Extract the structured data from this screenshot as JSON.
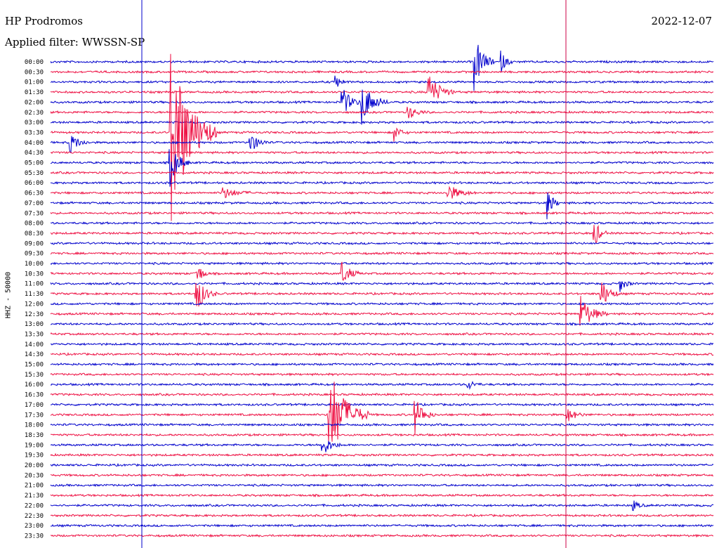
{
  "header": {
    "station": "HP Prodromos",
    "filter": "Applied filter: WWSSN-SP",
    "date": "2022-12-07"
  },
  "chart_data": {
    "type": "line",
    "ylabel": "HHZ - 50000",
    "row_labels": [
      "00:00",
      "00:30",
      "01:00",
      "01:30",
      "02:00",
      "02:30",
      "03:00",
      "03:30",
      "04:00",
      "04:30",
      "05:00",
      "05:30",
      "06:00",
      "06:30",
      "07:00",
      "07:30",
      "08:00",
      "08:30",
      "09:00",
      "09:30",
      "10:00",
      "10:30",
      "11:00",
      "11:30",
      "12:00",
      "12:30",
      "13:00",
      "13:30",
      "14:00",
      "14:30",
      "15:00",
      "15:30",
      "16:00",
      "16:30",
      "17:00",
      "17:30",
      "18:00",
      "18:30",
      "19:00",
      "19:30",
      "20:00",
      "20:30",
      "21:00",
      "21:30",
      "22:00",
      "22:30",
      "23:00",
      "23:30"
    ],
    "colors": {
      "even_rows": "#0000cc",
      "odd_rows": "#ee1144",
      "markers": [
        "#0000cc",
        "#cc0044"
      ]
    },
    "events": [
      {
        "row": 0,
        "pos": 0.64,
        "amp": 40,
        "len": 0.03
      },
      {
        "row": 0,
        "pos": 0.68,
        "amp": 14,
        "len": 0.02
      },
      {
        "row": 2,
        "pos": 0.43,
        "amp": 10,
        "len": 0.02
      },
      {
        "row": 3,
        "pos": 0.57,
        "amp": 28,
        "len": 0.04
      },
      {
        "row": 4,
        "pos": 0.44,
        "amp": 22,
        "len": 0.03
      },
      {
        "row": 4,
        "pos": 0.47,
        "amp": 30,
        "len": 0.04
      },
      {
        "row": 5,
        "pos": 0.54,
        "amp": 10,
        "len": 0.03
      },
      {
        "row": 7,
        "pos": 0.18,
        "amp": 140,
        "len": 0.07
      },
      {
        "row": 7,
        "pos": 0.52,
        "amp": 10,
        "len": 0.02
      },
      {
        "row": 8,
        "pos": 0.03,
        "amp": 14,
        "len": 0.03
      },
      {
        "row": 8,
        "pos": 0.3,
        "amp": 16,
        "len": 0.03
      },
      {
        "row": 10,
        "pos": 0.18,
        "amp": 34,
        "len": 0.03
      },
      {
        "row": 13,
        "pos": 0.26,
        "amp": 8,
        "len": 0.05
      },
      {
        "row": 13,
        "pos": 0.6,
        "amp": 12,
        "len": 0.04
      },
      {
        "row": 14,
        "pos": 0.75,
        "amp": 20,
        "len": 0.02
      },
      {
        "row": 17,
        "pos": 0.82,
        "amp": 22,
        "len": 0.02
      },
      {
        "row": 21,
        "pos": 0.22,
        "amp": 18,
        "len": 0.02
      },
      {
        "row": 21,
        "pos": 0.44,
        "amp": 16,
        "len": 0.03
      },
      {
        "row": 22,
        "pos": 0.86,
        "amp": 10,
        "len": 0.02
      },
      {
        "row": 23,
        "pos": 0.22,
        "amp": 28,
        "len": 0.03
      },
      {
        "row": 23,
        "pos": 0.83,
        "amp": 22,
        "len": 0.03
      },
      {
        "row": 25,
        "pos": 0.8,
        "amp": 26,
        "len": 0.04
      },
      {
        "row": 32,
        "pos": 0.63,
        "amp": 8,
        "len": 0.02
      },
      {
        "row": 35,
        "pos": 0.42,
        "amp": 70,
        "len": 0.06
      },
      {
        "row": 35,
        "pos": 0.55,
        "amp": 26,
        "len": 0.03
      },
      {
        "row": 35,
        "pos": 0.78,
        "amp": 10,
        "len": 0.03
      },
      {
        "row": 38,
        "pos": 0.41,
        "amp": 16,
        "len": 0.03
      },
      {
        "row": 44,
        "pos": 0.88,
        "amp": 6,
        "len": 0.02
      }
    ]
  }
}
